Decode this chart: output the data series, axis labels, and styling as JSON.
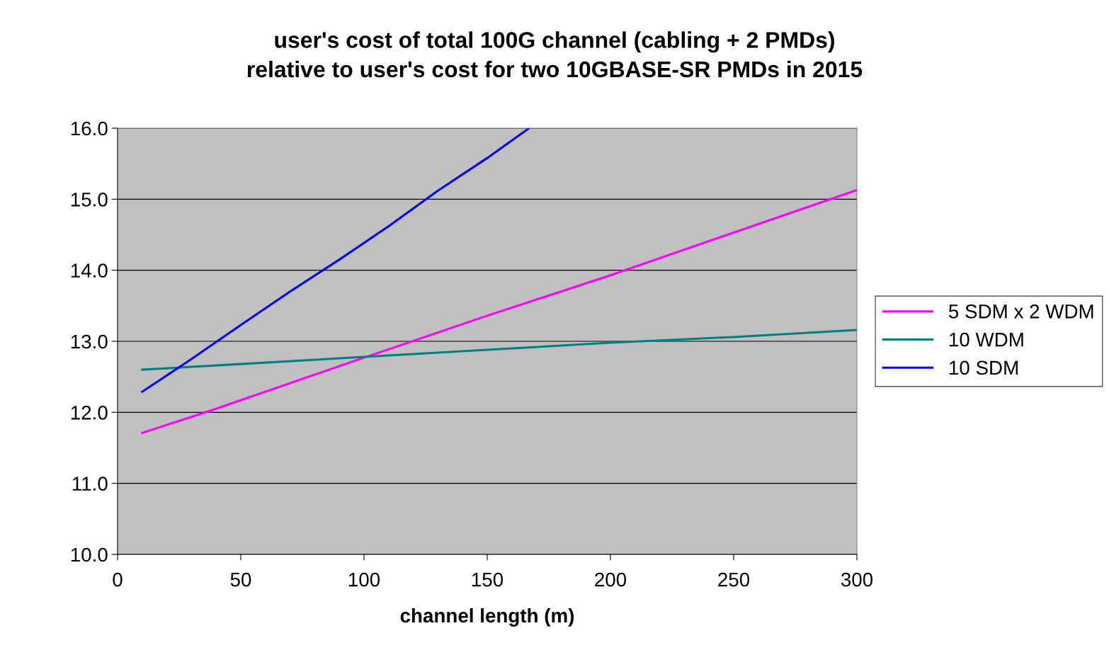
{
  "chart_data": {
    "type": "line",
    "title": "user's cost of total 100G channel (cabling + 2 PMDs)\nrelative to user's cost for two 10GBASE-SR PMDs in 2015",
    "xlabel": "channel length (m)",
    "series": [
      {
        "name": "5 SDM x 2 WDM",
        "color": "#ff00ff",
        "x": [
          10,
          40,
          100,
          150,
          200,
          250,
          300
        ],
        "values": [
          11.71,
          12.05,
          12.77,
          13.36,
          13.93,
          14.53,
          15.13
        ]
      },
      {
        "name": "10 WDM",
        "color": "#008080",
        "x": [
          10,
          50,
          100,
          150,
          200,
          250,
          300
        ],
        "values": [
          12.6,
          12.68,
          12.78,
          12.88,
          12.98,
          13.06,
          13.16
        ]
      },
      {
        "name": "10 SDM",
        "color": "#0000ff",
        "x": [
          10,
          30,
          50,
          70,
          90,
          110,
          130,
          150,
          167
        ],
        "values": [
          12.29,
          12.75,
          13.23,
          13.7,
          14.15,
          14.62,
          15.12,
          15.58,
          16.0
        ]
      }
    ],
    "xlim": [
      0,
      300
    ],
    "xticks": [
      0,
      50,
      100,
      150,
      200,
      250,
      300
    ],
    "ylim": [
      10,
      16
    ],
    "yticks": [
      {
        "value": 10,
        "label": "10.0"
      },
      {
        "value": 11,
        "label": "11.0"
      },
      {
        "value": 12,
        "label": "12.0"
      },
      {
        "value": 13,
        "label": "13.0"
      },
      {
        "value": 14,
        "label": "14.0"
      },
      {
        "value": 15,
        "label": "15.0"
      },
      {
        "value": 16,
        "label": "16.0"
      }
    ],
    "grid": "y",
    "legend": "right",
    "marker": "none",
    "line_style": "solid"
  }
}
